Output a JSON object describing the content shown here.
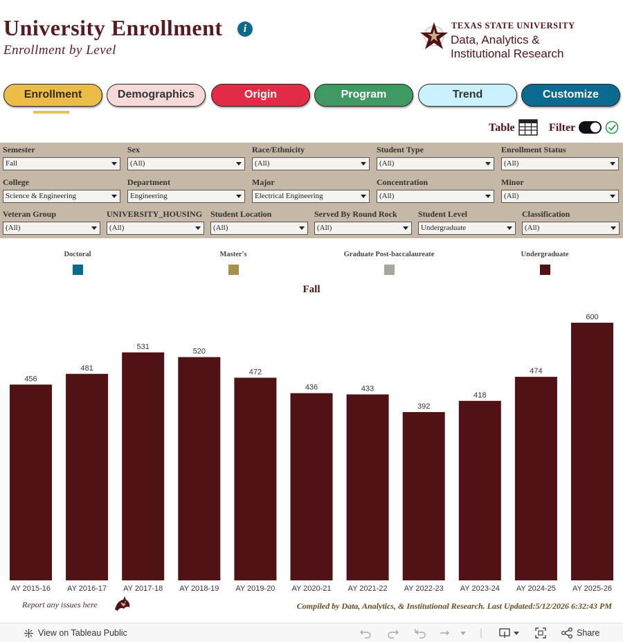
{
  "header": {
    "title": "University Enrollment",
    "subtitle": "Enrollment by Level",
    "logo": {
      "line1": "TEXAS STATE UNIVERSITY",
      "line2": "Data, Analytics &",
      "line3": "Institutional Research"
    },
    "info_icon": "info-icon"
  },
  "tabs": [
    {
      "label": "Enrollment",
      "bg": "#e9bd48",
      "fg": "#3a2a10",
      "active": true
    },
    {
      "label": "Demographics",
      "bg": "#f7d9d9",
      "fg": "#333333",
      "active": false
    },
    {
      "label": "Origin",
      "bg": "#e22b45",
      "fg": "#ffffff",
      "active": false
    },
    {
      "label": "Program",
      "bg": "#3f9a62",
      "fg": "#ffffff",
      "active": false
    },
    {
      "label": "Trend",
      "bg": "#c9f0fb",
      "fg": "#333333",
      "active": false
    },
    {
      "label": "Customize",
      "bg": "#0a6a8f",
      "fg": "#ffffff",
      "active": false
    }
  ],
  "toolbar": {
    "table_label": "Table",
    "filter_label": "Filter"
  },
  "filters": {
    "row1": [
      {
        "label": "Semester",
        "value": "Fall"
      },
      {
        "label": "Sex",
        "value": "(All)"
      },
      {
        "label": "Race/Ethnicity",
        "value": "(All)"
      },
      {
        "label": "Student Type",
        "value": "(All)"
      },
      {
        "label": "Enrollment Status",
        "value": "(All)"
      }
    ],
    "row2": [
      {
        "label": "College",
        "value": "Science & Engineering"
      },
      {
        "label": "Department",
        "value": "Engineering"
      },
      {
        "label": "Major",
        "value": "Electrical Engineering"
      },
      {
        "label": "Concentration",
        "value": "(All)"
      },
      {
        "label": "Minor",
        "value": "(All)"
      }
    ],
    "row3": [
      {
        "label": "Veteran Group",
        "value": "(All)"
      },
      {
        "label": "UNIVERSITY_HOUSING",
        "value": "(All)"
      },
      {
        "label": "Student Location",
        "value": "(All)"
      },
      {
        "label": "Served By Round Rock",
        "value": "(All)"
      },
      {
        "label": "Student Level",
        "value": "Undergraduate"
      },
      {
        "label": "Classification",
        "value": "(All)"
      }
    ]
  },
  "legend": [
    {
      "label": "Doctoral",
      "color": "#0e6a8a"
    },
    {
      "label": "Master's",
      "color": "#a8914f"
    },
    {
      "label": "Graduate Post-baccalaureate",
      "color": "#a7a69c"
    },
    {
      "label": "Undergraduate",
      "color": "#501214"
    }
  ],
  "chart_data": {
    "type": "bar",
    "title": "Fall",
    "xlabel": "",
    "ylabel": "",
    "categories": [
      "AY 2015-16",
      "AY 2016-17",
      "AY 2017-18",
      "AY 2018-19",
      "AY 2019-20",
      "AY 2020-21",
      "AY 2021-22",
      "AY 2022-23",
      "AY 2023-24",
      "AY 2024-25",
      "AY 2025-26"
    ],
    "series": [
      {
        "name": "Undergraduate",
        "color": "#501214",
        "values": [
          456,
          481,
          531,
          520,
          472,
          436,
          433,
          392,
          418,
          474,
          600
        ]
      }
    ],
    "ylim": [
      0,
      600
    ],
    "grid": false,
    "data_labels": true
  },
  "footer_notes": {
    "report": "Report any issues here",
    "compiled": "Compiled by Data, Analytics, & Institutional Research. Last Updated:5/12/2026 6:32:43 PM"
  },
  "tableau_bar": {
    "view_label": "View on Tableau Public",
    "share_label": "Share"
  }
}
